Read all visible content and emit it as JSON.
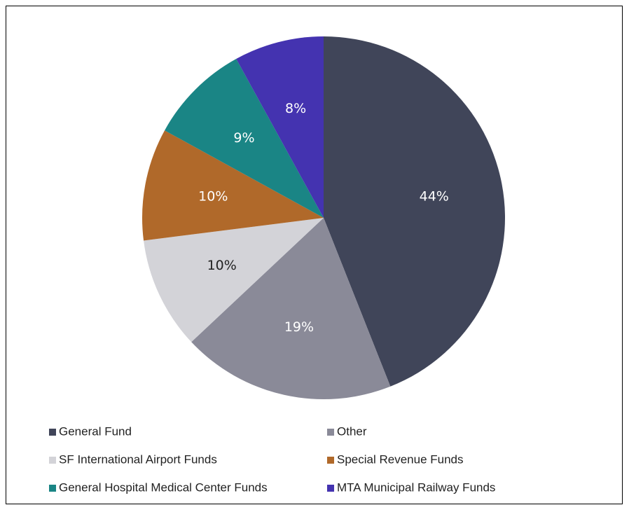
{
  "chart_data": {
    "type": "pie",
    "categories": [
      "General Fund",
      "Other",
      "SF International Airport Funds",
      "Special Revenue Funds",
      "General Hospital Medical Center Funds",
      "MTA Municipal Railway Funds"
    ],
    "values": [
      44,
      19,
      10,
      10,
      9,
      8
    ],
    "value_labels": [
      "44%",
      "19%",
      "10%",
      "10%",
      "9%",
      "8%"
    ],
    "colors": [
      "#404559",
      "#8a8a98",
      "#d3d3d8",
      "#b0692a",
      "#1a8585",
      "#4433b0"
    ],
    "legend": "bottom"
  }
}
